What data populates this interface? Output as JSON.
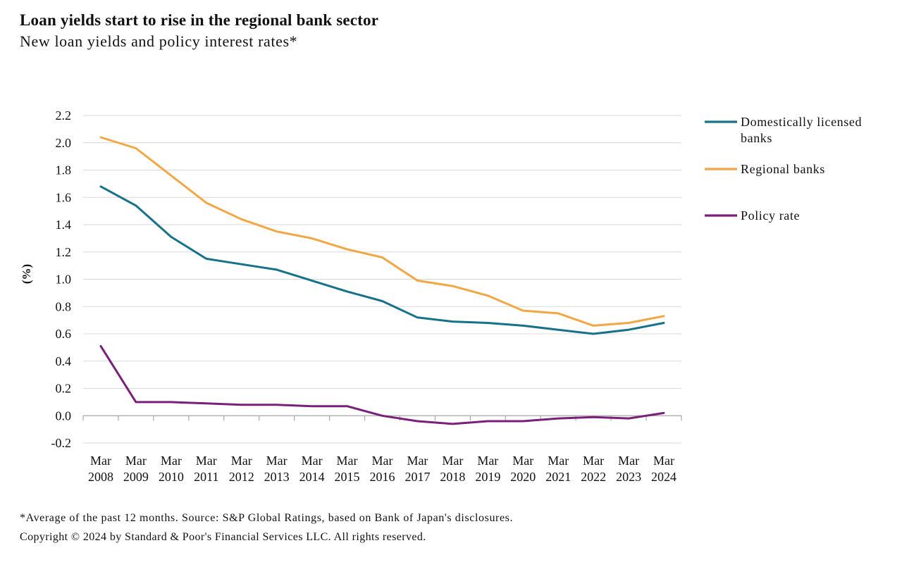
{
  "title": "Loan yields start to rise in the regional bank sector",
  "subtitle": "New loan yields and policy interest rates*",
  "footnote": "*Average of the past 12 months. Source: S&P Global Ratings, based on Bank of Japan's disclosures.",
  "copyright": "Copyright © 2024 by Standard & Poor's Financial Services LLC. All rights reserved.",
  "chart_data": {
    "type": "line",
    "ylabel": "(%)",
    "ylim": [
      -0.2,
      2.2
    ],
    "yticks": [
      "2.2",
      "2.0",
      "1.8",
      "1.6",
      "1.4",
      "1.2",
      "1.0",
      "0.8",
      "0.6",
      "0.4",
      "0.2",
      "0.0",
      "-0.2"
    ],
    "grid": true,
    "legend_position": "right",
    "categories": [
      [
        "Mar",
        "2008"
      ],
      [
        "Mar",
        "2009"
      ],
      [
        "Mar",
        "2010"
      ],
      [
        "Mar",
        "2011"
      ],
      [
        "Mar",
        "2012"
      ],
      [
        "Mar",
        "2013"
      ],
      [
        "Mar",
        "2014"
      ],
      [
        "Mar",
        "2015"
      ],
      [
        "Mar",
        "2016"
      ],
      [
        "Mar",
        "2017"
      ],
      [
        "Mar",
        "2018"
      ],
      [
        "Mar",
        "2019"
      ],
      [
        "Mar",
        "2020"
      ],
      [
        "Mar",
        "2021"
      ],
      [
        "Mar",
        "2022"
      ],
      [
        "Mar",
        "2023"
      ],
      [
        "Mar",
        "2024"
      ]
    ],
    "series": [
      {
        "name": "Domestically licensed banks",
        "color": "#16718a",
        "values": [
          1.68,
          1.54,
          1.31,
          1.15,
          1.11,
          1.07,
          0.99,
          0.91,
          0.84,
          0.72,
          0.69,
          0.68,
          0.66,
          0.63,
          0.6,
          0.63,
          0.68
        ]
      },
      {
        "name": "Regional banks",
        "color": "#f2a744",
        "values": [
          2.04,
          1.96,
          1.76,
          1.56,
          1.44,
          1.35,
          1.3,
          1.22,
          1.16,
          0.99,
          0.95,
          0.88,
          0.77,
          0.75,
          0.66,
          0.68,
          0.73
        ]
      },
      {
        "name": "Policy rate",
        "color": "#7a1f7a",
        "values": [
          0.51,
          0.1,
          0.1,
          0.09,
          0.08,
          0.08,
          0.07,
          0.07,
          0.0,
          -0.04,
          -0.06,
          -0.04,
          -0.04,
          -0.02,
          -0.01,
          -0.02,
          0.02
        ]
      }
    ]
  }
}
